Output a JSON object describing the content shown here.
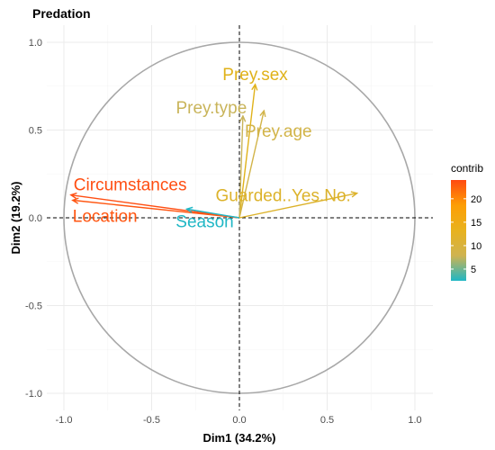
{
  "chart_data": {
    "type": "scatter",
    "subtype": "pca-variable-correlation-circle",
    "title": "Predation",
    "xlabel": "Dim1 (34.2%)",
    "ylabel": "Dim2 (19.2%)",
    "xlim": [
      -1.0,
      1.0
    ],
    "ylim": [
      -1.0,
      1.0
    ],
    "xticks": [
      "-1.0",
      "-0.5",
      "0.0",
      "0.5",
      "1.0"
    ],
    "yticks": [
      "-1.0",
      "-0.5",
      "0.0",
      "0.5",
      "1.0"
    ],
    "grid": true,
    "unit_circle": true,
    "variables": [
      {
        "name": "Prey.sex",
        "x": 0.09,
        "y": 0.76,
        "contrib": 14.5,
        "color": "#e0b21a"
      },
      {
        "name": "Prey.type",
        "x": 0.02,
        "y": 0.58,
        "contrib": 10.5,
        "color": "#c9b45a"
      },
      {
        "name": "Prey.age",
        "x": 0.14,
        "y": 0.61,
        "contrib": 11.5,
        "color": "#d2b449"
      },
      {
        "name": "Guarded..Yes.No.",
        "x": 0.67,
        "y": 0.14,
        "contrib": 13.5,
        "color": "#dcb22a"
      },
      {
        "name": "Circumstances",
        "x": -0.96,
        "y": 0.13,
        "contrib": 23.5,
        "color": "#ff4e12"
      },
      {
        "name": "Location",
        "x": -0.95,
        "y": 0.1,
        "contrib": 23.0,
        "color": "#ff5510"
      },
      {
        "name": "Season",
        "x": -0.3,
        "y": 0.05,
        "contrib": 3.0,
        "color": "#20b7c5"
      }
    ],
    "legend": {
      "title": "contrib",
      "position": "right",
      "ticks": [
        "20",
        "15",
        "10",
        "5"
      ],
      "tick_values": [
        20,
        15,
        10,
        5
      ],
      "range": [
        2.5,
        24
      ],
      "colors": [
        "#20b7c5",
        "#cfb350",
        "#e8b21d",
        "#fd9e05",
        "#ff4a10"
      ]
    }
  }
}
